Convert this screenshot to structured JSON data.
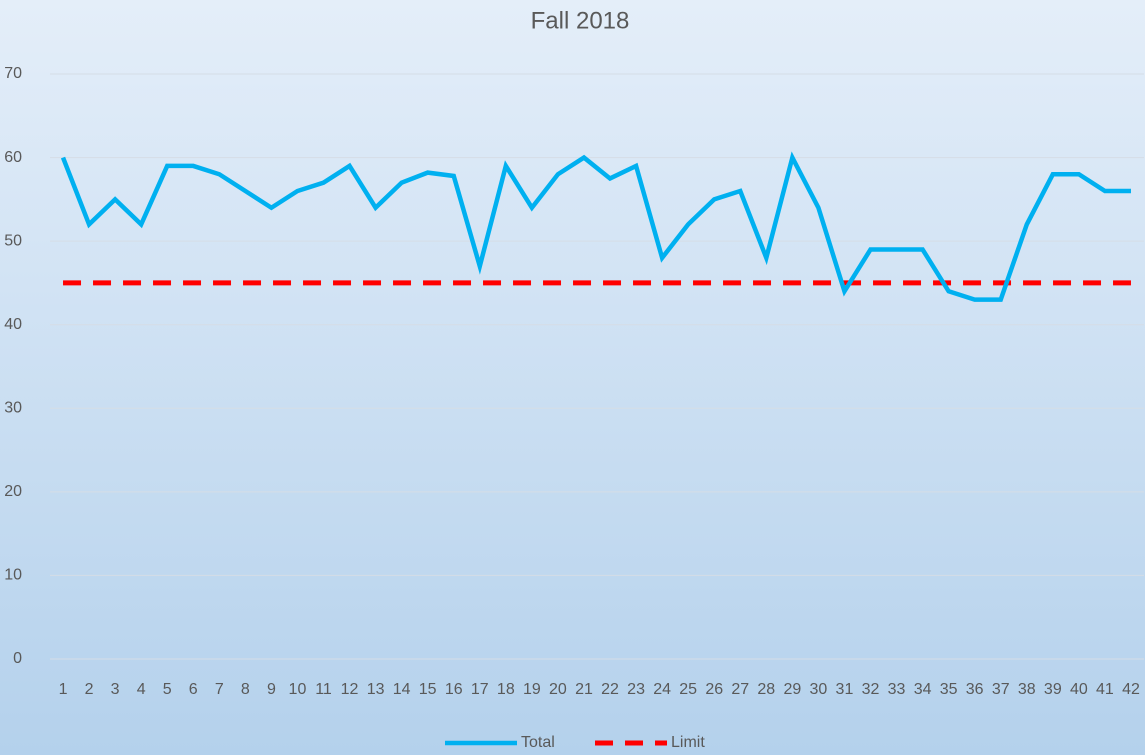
{
  "chart_data": {
    "type": "line",
    "title": "Fall 2018",
    "categories": [
      1,
      2,
      3,
      4,
      5,
      6,
      7,
      8,
      9,
      10,
      11,
      12,
      13,
      14,
      15,
      16,
      17,
      18,
      19,
      20,
      21,
      22,
      23,
      24,
      25,
      26,
      27,
      28,
      29,
      30,
      31,
      32,
      33,
      34,
      35,
      36,
      37,
      38,
      39,
      40,
      41,
      42
    ],
    "series": [
      {
        "name": "Total",
        "color": "#00b0f0",
        "dash": false,
        "values": [
          60,
          52,
          55,
          52,
          59,
          59,
          58,
          56,
          54,
          56,
          57,
          59,
          54,
          57,
          58.2,
          57.8,
          47,
          59,
          54,
          58,
          60,
          57.5,
          59,
          48,
          52,
          55,
          56,
          48,
          60,
          54,
          44,
          49,
          49,
          49,
          44,
          43,
          43,
          52,
          58,
          58,
          56,
          56
        ]
      },
      {
        "name": "Limit",
        "color": "#ff0000",
        "dash": true,
        "values": [
          45,
          45,
          45,
          45,
          45,
          45,
          45,
          45,
          45,
          45,
          45,
          45,
          45,
          45,
          45,
          45,
          45,
          45,
          45,
          45,
          45,
          45,
          45,
          45,
          45,
          45,
          45,
          45,
          45,
          45,
          45,
          45,
          45,
          45,
          45,
          45,
          45,
          45,
          45,
          45,
          45,
          45
        ]
      }
    ],
    "ylim": [
      0,
      70
    ],
    "yticks": [
      0,
      10,
      20,
      30,
      40,
      50,
      60,
      70
    ],
    "grid": true,
    "legend": "bottom"
  }
}
